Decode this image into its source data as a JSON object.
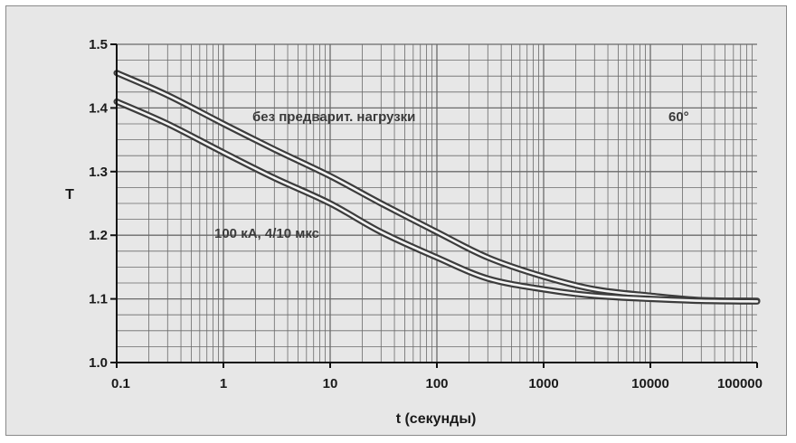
{
  "chart_data": {
    "type": "line",
    "xscale": "log",
    "xlabel": "t (секунды)",
    "ylabel": "T",
    "xlim": [
      0.1,
      100000
    ],
    "ylim": [
      1.0,
      1.5
    ],
    "grid": true,
    "x_ticks": [
      0.1,
      1,
      10,
      100,
      1000,
      10000,
      100000
    ],
    "x_tick_labels": [
      "0.1",
      "1",
      "10",
      "100",
      "1000",
      "10000",
      "100000"
    ],
    "y_ticks": [
      1.0,
      1.1,
      1.2,
      1.3,
      1.4,
      1.5
    ],
    "y_tick_labels": [
      "1.0",
      "1.1",
      "1.2",
      "1.3",
      "1.4",
      "1.5"
    ],
    "annotations": [
      {
        "text": "без предварит. нагрузки"
      },
      {
        "text": "60°"
      },
      {
        "text": "100 кА, 4/10 мкс"
      }
    ],
    "series": [
      {
        "x": [
          0.1,
          0.3,
          1,
          3,
          10,
          30,
          100,
          300,
          1000,
          3000,
          10000,
          30000,
          100000
        ],
        "values": [
          1.455,
          1.42,
          1.375,
          1.335,
          1.293,
          1.25,
          1.205,
          1.165,
          1.135,
          1.115,
          1.105,
          1.098,
          1.097
        ]
      },
      {
        "x": [
          0.1,
          0.3,
          1,
          3,
          10,
          30,
          100,
          300,
          1000,
          3000,
          10000,
          30000,
          100000
        ],
        "values": [
          1.41,
          1.375,
          1.33,
          1.29,
          1.25,
          1.205,
          1.165,
          1.132,
          1.115,
          1.105,
          1.1,
          1.097,
          1.096
        ]
      }
    ],
    "colors": {
      "background": "#e7e7e7",
      "grid": "#6a6a6a",
      "curve": "#3c3c3c",
      "curve_highlight": "#f4f4f4",
      "text": "#1a1a1a"
    }
  }
}
